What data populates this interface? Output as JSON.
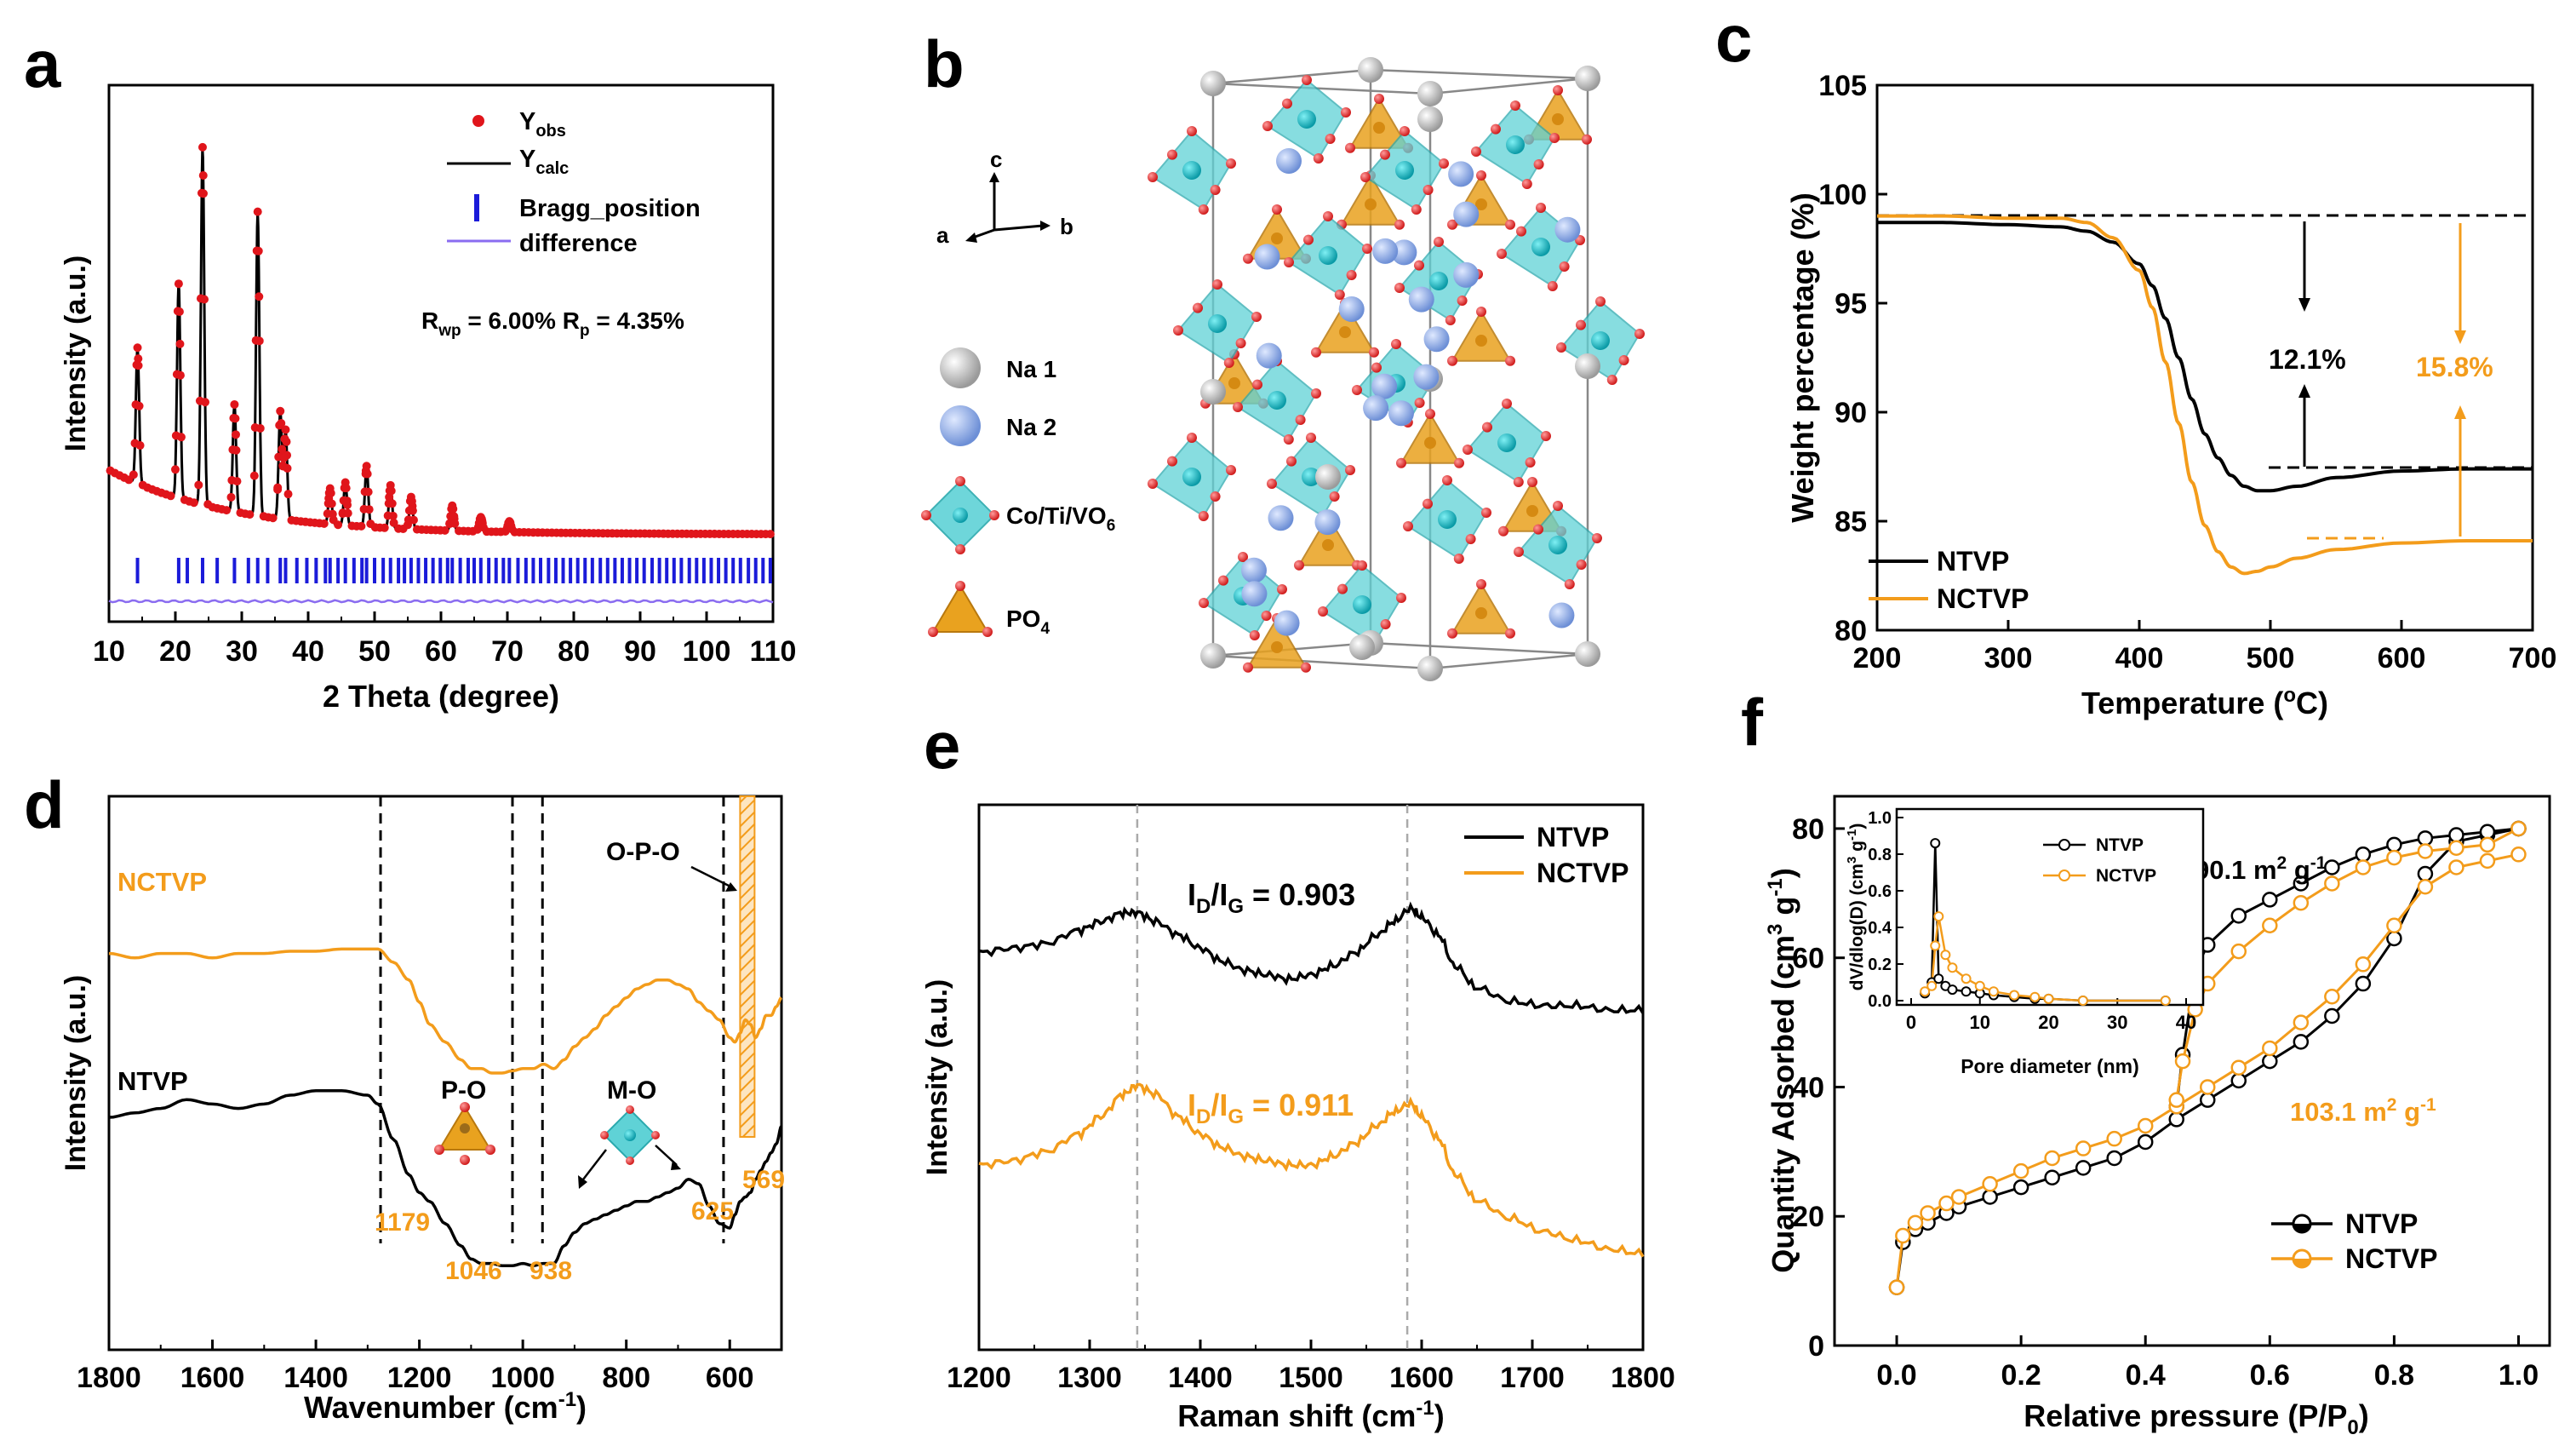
{
  "colors": {
    "black": "#000000",
    "orange": "#f39c1b",
    "red": "#e0151b",
    "blue": "#1b1bd9",
    "violet": "#8a6cf0",
    "teal": "#3fc1c9",
    "gold": "#e9a21f"
  },
  "panels": {
    "a": {
      "letter": "a",
      "ylabel": "Intensity (a.u.)",
      "xlabel": "2 Theta (degree)",
      "legend": [
        "Y",
        "obs",
        "Y",
        "calc",
        "Bragg_position",
        "difference"
      ],
      "annotation": {
        "rwp": "R",
        "rwp_sub": "wp",
        "rwp_val": " = 6.00% R",
        "rp_sub": "p",
        "rp_val": " = 4.35%"
      }
    },
    "b": {
      "letter": "b",
      "axes": {
        "a": "a",
        "b": "b",
        "c": "c"
      },
      "legend": {
        "na1": "Na 1",
        "na2": "Na 2",
        "oct": "Co/Ti/VO",
        "oct_sub": "6",
        "tet": "PO",
        "tet_sub": "4"
      }
    },
    "c": {
      "letter": "c",
      "ylabel": "Weight percentage (%)",
      "xlabel_pre": "Temperature (",
      "xlabel_sup": "o",
      "xlabel_post": "C)",
      "annot_black": "12.1%",
      "annot_orange": "15.8%",
      "legend": [
        "NTVP",
        "NCTVP"
      ]
    },
    "d": {
      "letter": "d",
      "ylabel": "Intensity (a.u.)",
      "xlabel_pre": "Wavenumber (cm",
      "xlabel_sup": "-1",
      "xlabel_post": ")",
      "series_labels": [
        "NCTVP",
        "NTVP"
      ],
      "opo": "O-P-O",
      "po": "P-O",
      "mo": "M-O",
      "peaks": [
        "1179",
        "1046",
        "938",
        "625",
        "569"
      ]
    },
    "e": {
      "letter": "e",
      "ylabel": "Intensity (a.u.)",
      "xlabel_pre": "Raman shift (cm",
      "xlabel_sup": "-1",
      "xlabel_post": ")",
      "legend": [
        "NTVP",
        "NCTVP"
      ],
      "ratio_black": {
        "pre": "I",
        "d": "D",
        "mid": "/I",
        "g": "G",
        "val": " = 0.903"
      },
      "ratio_orange": {
        "pre": "I",
        "d": "D",
        "mid": "/I",
        "g": "G",
        "val": " = 0.911"
      }
    },
    "f": {
      "letter": "f",
      "ylabel_pre": "Quantity Adsorbed (cm",
      "ylabel_sup": "3",
      "ylabel_mid": " g",
      "ylabel_sup2": "-1",
      "ylabel_post": ")",
      "xlabel_pre": "Relative pressure (P/P",
      "xlabel_sub": "0",
      "xlabel_post": ")",
      "area_black": {
        "val": "90.1 m",
        "sup": "2",
        "mid": " g",
        "sup2": "-1"
      },
      "area_orange": {
        "val": "103.1 m",
        "sup": "2",
        "mid": " g",
        "sup2": "-1"
      },
      "legend": [
        "NTVP",
        "NCTVP"
      ],
      "inset": {
        "xlabel": "Pore diameter (nm)",
        "ylabel_pre": "dV/dlog(D) (cm",
        "ylabel_sup": "3",
        "ylabel_mid": " g",
        "ylabel_sup2": "-1",
        "ylabel_post": ")",
        "legend": [
          "NTVP",
          "NCTVP"
        ]
      }
    }
  },
  "chart_data": [
    {
      "panel": "a",
      "type": "line",
      "xlim": [
        10,
        110
      ],
      "xticks": [
        10,
        20,
        30,
        40,
        50,
        60,
        70,
        80,
        90,
        100,
        110
      ],
      "peaks": [
        [
          14.3,
          0.38
        ],
        [
          20.5,
          0.6
        ],
        [
          24.1,
          1.0
        ],
        [
          28.9,
          0.3
        ],
        [
          32.4,
          0.85
        ],
        [
          35.8,
          0.3
        ],
        [
          36.6,
          0.25
        ],
        [
          43.3,
          0.1
        ],
        [
          45.6,
          0.12
        ],
        [
          48.8,
          0.17
        ],
        [
          52.4,
          0.12
        ],
        [
          55.5,
          0.09
        ],
        [
          61.7,
          0.07
        ],
        [
          66.0,
          0.04
        ],
        [
          70.3,
          0.03
        ]
      ],
      "bragg": [
        14.3,
        20.5,
        21.8,
        24.1,
        26.3,
        28.9,
        31.0,
        32.4,
        33.9,
        35.8,
        36.6,
        38.3,
        39.8,
        41.2,
        42.6,
        43.3,
        44.5,
        45.6,
        46.9,
        48.1,
        48.8,
        50.0,
        51.3,
        52.4,
        53.6,
        54.5,
        55.5,
        56.6,
        57.7,
        58.8,
        59.9,
        61.0,
        61.7,
        62.9,
        64.1,
        65.0,
        66.0,
        67.2,
        68.3,
        69.4,
        70.3,
        71.6,
        72.8,
        73.9,
        75.0,
        76.2,
        77.3,
        78.4,
        79.5,
        80.6,
        81.7,
        82.8,
        84.0,
        85.1,
        86.2,
        87.3,
        88.4,
        89.5,
        90.6,
        91.8,
        92.9,
        94.0,
        95.1,
        96.2,
        97.4,
        98.5,
        99.6,
        100.7,
        101.8,
        102.9,
        104.0,
        105.1,
        106.3,
        107.4,
        108.5,
        109.6
      ]
    },
    {
      "panel": "c",
      "type": "line",
      "xlabel": "Temperature (oC)",
      "ylabel": "Weight percentage (%)",
      "xlim": [
        200,
        700
      ],
      "ylim": [
        80,
        105
      ],
      "xticks": [
        200,
        300,
        400,
        500,
        600,
        700
      ],
      "yticks": [
        80,
        85,
        90,
        95,
        100,
        105
      ],
      "series": [
        {
          "name": "NTVP",
          "x": [
            200,
            250,
            300,
            340,
            360,
            380,
            400,
            410,
            420,
            430,
            440,
            450,
            460,
            470,
            480,
            490,
            500,
            520,
            550,
            600,
            650,
            700
          ],
          "y": [
            98.7,
            98.7,
            98.6,
            98.5,
            98.3,
            97.8,
            96.8,
            95.8,
            94.3,
            92.5,
            90.6,
            89.0,
            87.9,
            87.1,
            86.6,
            86.4,
            86.4,
            86.6,
            87.0,
            87.3,
            87.4,
            87.4
          ]
        },
        {
          "name": "NCTVP",
          "x": [
            200,
            250,
            300,
            340,
            360,
            380,
            400,
            410,
            420,
            430,
            440,
            450,
            460,
            470,
            480,
            490,
            500,
            520,
            550,
            600,
            650,
            700
          ],
          "y": [
            99.0,
            99.0,
            98.9,
            98.9,
            98.7,
            98.0,
            96.5,
            94.8,
            92.3,
            89.5,
            86.8,
            84.8,
            83.6,
            82.9,
            82.6,
            82.7,
            82.9,
            83.3,
            83.7,
            84.0,
            84.1,
            84.1
          ]
        }
      ]
    },
    {
      "panel": "d",
      "type": "line",
      "xlabel": "Wavenumber (cm-1)",
      "xlim": [
        1800,
        500
      ],
      "xticks": [
        1800,
        1600,
        1400,
        1200,
        1000,
        800,
        600
      ],
      "vlines": [
        1275,
        1020,
        962,
        612
      ],
      "hatch": [
        580,
        552
      ],
      "series": [
        {
          "name": "NCTVP",
          "x": [
            1800,
            1750,
            1700,
            1650,
            1600,
            1550,
            1500,
            1450,
            1400,
            1350,
            1300,
            1280,
            1250,
            1220,
            1200,
            1180,
            1150,
            1120,
            1100,
            1080,
            1060,
            1040,
            1020,
            1000,
            980,
            960,
            940,
            920,
            900,
            880,
            860,
            840,
            820,
            800,
            780,
            760,
            740,
            720,
            700,
            680,
            660,
            640,
            620,
            600,
            590,
            580,
            570,
            560,
            550,
            540,
            530,
            520,
            510,
            500
          ],
          "y": [
            0.77,
            0.76,
            0.77,
            0.77,
            0.76,
            0.77,
            0.77,
            0.775,
            0.775,
            0.78,
            0.78,
            0.78,
            0.75,
            0.71,
            0.66,
            0.61,
            0.57,
            0.53,
            0.51,
            0.51,
            0.5,
            0.5,
            0.505,
            0.51,
            0.51,
            0.52,
            0.51,
            0.53,
            0.56,
            0.58,
            0.6,
            0.63,
            0.65,
            0.67,
            0.69,
            0.7,
            0.71,
            0.71,
            0.7,
            0.69,
            0.66,
            0.64,
            0.62,
            0.58,
            0.57,
            0.59,
            0.62,
            0.61,
            0.58,
            0.6,
            0.63,
            0.63,
            0.65,
            0.67
          ]
        },
        {
          "name": "NTVP",
          "x": [
            1800,
            1750,
            1700,
            1650,
            1600,
            1550,
            1500,
            1450,
            1400,
            1350,
            1300,
            1280,
            1250,
            1220,
            1200,
            1180,
            1150,
            1120,
            1100,
            1080,
            1060,
            1040,
            1020,
            1000,
            980,
            960,
            940,
            920,
            900,
            880,
            860,
            840,
            820,
            800,
            780,
            760,
            740,
            720,
            700,
            680,
            660,
            640,
            620,
            600,
            590,
            580,
            570,
            560,
            550,
            540,
            530,
            520,
            510,
            500
          ],
          "y": [
            0.4,
            0.41,
            0.42,
            0.44,
            0.43,
            0.42,
            0.43,
            0.45,
            0.46,
            0.46,
            0.45,
            0.43,
            0.35,
            0.27,
            0.23,
            0.21,
            0.16,
            0.11,
            0.08,
            0.07,
            0.07,
            0.065,
            0.065,
            0.07,
            0.065,
            0.07,
            0.07,
            0.11,
            0.14,
            0.16,
            0.17,
            0.18,
            0.19,
            0.2,
            0.21,
            0.21,
            0.22,
            0.23,
            0.24,
            0.26,
            0.25,
            0.2,
            0.16,
            0.15,
            0.18,
            0.21,
            0.22,
            0.23,
            0.26,
            0.28,
            0.3,
            0.32,
            0.34,
            0.38
          ]
        }
      ]
    },
    {
      "panel": "e",
      "type": "line",
      "xlabel": "Raman shift (cm-1)",
      "xlim": [
        1200,
        1800
      ],
      "xticks": [
        1200,
        1300,
        1400,
        1500,
        1600,
        1700,
        1800
      ],
      "vlines": [
        1343,
        1587
      ],
      "series": [
        {
          "name": "NTVP",
          "x": [
            1200,
            1230,
            1260,
            1290,
            1310,
            1330,
            1343,
            1360,
            1380,
            1400,
            1420,
            1440,
            1460,
            1480,
            1500,
            1520,
            1540,
            1560,
            1575,
            1590,
            1600,
            1615,
            1630,
            1650,
            1680,
            1710,
            1740,
            1770,
            1800
          ],
          "y": [
            0.82,
            0.83,
            0.84,
            0.87,
            0.89,
            0.91,
            0.91,
            0.89,
            0.86,
            0.83,
            0.8,
            0.78,
            0.77,
            0.76,
            0.77,
            0.79,
            0.82,
            0.86,
            0.89,
            0.92,
            0.9,
            0.86,
            0.79,
            0.74,
            0.71,
            0.7,
            0.7,
            0.69,
            0.69
          ]
        },
        {
          "name": "NCTVP",
          "x": [
            1200,
            1230,
            1260,
            1290,
            1310,
            1330,
            1343,
            1360,
            1380,
            1400,
            1420,
            1440,
            1460,
            1480,
            1500,
            1520,
            1540,
            1560,
            1575,
            1590,
            1600,
            1615,
            1630,
            1650,
            1680,
            1710,
            1740,
            1770,
            1800
          ],
          "y": [
            0.34,
            0.35,
            0.37,
            0.41,
            0.45,
            0.5,
            0.52,
            0.5,
            0.45,
            0.41,
            0.38,
            0.36,
            0.35,
            0.34,
            0.34,
            0.36,
            0.39,
            0.43,
            0.46,
            0.48,
            0.45,
            0.4,
            0.32,
            0.26,
            0.22,
            0.19,
            0.17,
            0.15,
            0.14
          ]
        }
      ]
    },
    {
      "panel": "f",
      "type": "line",
      "xlabel": "Relative pressure (P/P0)",
      "ylabel": "Quantity Adsorbed (cm3 g-1)",
      "xlim": [
        -0.1,
        1.05
      ],
      "ylim": [
        0,
        85
      ],
      "xticks": [
        0.0,
        0.2,
        0.4,
        0.6,
        0.8,
        1.0
      ],
      "yticks": [
        0,
        20,
        40,
        60,
        80
      ],
      "series": [
        {
          "name": "NTVP adsorption",
          "x": [
            0.0,
            0.01,
            0.03,
            0.05,
            0.08,
            0.1,
            0.15,
            0.2,
            0.25,
            0.3,
            0.35,
            0.4,
            0.45,
            0.5,
            0.55,
            0.6,
            0.65,
            0.7,
            0.75,
            0.8,
            0.85,
            0.9,
            0.95,
            1.0
          ],
          "y": [
            9,
            16,
            18,
            19,
            20.5,
            21.5,
            23,
            24.5,
            26,
            27.5,
            29,
            31.5,
            35,
            38,
            41,
            44,
            47,
            51,
            56,
            63,
            73,
            78,
            79,
            80
          ]
        },
        {
          "name": "NTVP desorption",
          "x": [
            1.0,
            0.95,
            0.9,
            0.85,
            0.8,
            0.75,
            0.7,
            0.65,
            0.6,
            0.55,
            0.5,
            0.48,
            0.46,
            0.45
          ],
          "y": [
            80,
            79.5,
            79,
            78.5,
            77.5,
            76,
            74,
            71.5,
            69,
            66.5,
            62,
            58,
            45,
            37
          ]
        },
        {
          "name": "NCTVP adsorption",
          "x": [
            0.0,
            0.01,
            0.03,
            0.05,
            0.08,
            0.1,
            0.15,
            0.2,
            0.25,
            0.3,
            0.35,
            0.4,
            0.45,
            0.5,
            0.55,
            0.6,
            0.65,
            0.7,
            0.75,
            0.8,
            0.85,
            0.9,
            0.95,
            1.0
          ],
          "y": [
            9,
            17,
            19,
            20.5,
            22,
            23,
            25,
            27,
            29,
            30.5,
            32,
            34,
            37,
            40,
            43,
            46,
            50,
            54,
            59,
            65,
            71,
            74,
            75,
            76
          ]
        },
        {
          "name": "NCTVP desorption",
          "x": [
            1.0,
            0.95,
            0.9,
            0.85,
            0.8,
            0.75,
            0.7,
            0.65,
            0.6,
            0.55,
            0.5,
            0.48,
            0.46,
            0.45
          ],
          "y": [
            80,
            77.5,
            77,
            76.5,
            75.5,
            74,
            71.5,
            68.5,
            65,
            61,
            56,
            52,
            44,
            38
          ]
        }
      ]
    },
    {
      "panel": "f-inset",
      "type": "line",
      "xlabel": "Pore diameter (nm)",
      "xlim": [
        0,
        40
      ],
      "ylim": [
        0,
        1.0
      ],
      "xticks": [
        0,
        10,
        20,
        30,
        40
      ],
      "yticks": [
        0.0,
        0.2,
        0.4,
        0.6,
        0.8,
        1.0
      ],
      "series": [
        {
          "name": "NTVP",
          "x": [
            2,
            3,
            3.5,
            4,
            5,
            6,
            8,
            10,
            12,
            15,
            18,
            20,
            25,
            37
          ],
          "y": [
            0.04,
            0.1,
            0.86,
            0.12,
            0.08,
            0.06,
            0.05,
            0.04,
            0.03,
            0.02,
            0.01,
            0.01,
            0.0,
            0.0
          ]
        },
        {
          "name": "NCTVP",
          "x": [
            2,
            3,
            3.5,
            4,
            5,
            6,
            8,
            10,
            12,
            15,
            18,
            20,
            25,
            37
          ],
          "y": [
            0.05,
            0.08,
            0.3,
            0.46,
            0.25,
            0.18,
            0.12,
            0.08,
            0.05,
            0.03,
            0.02,
            0.01,
            0.0,
            0.0
          ]
        }
      ]
    }
  ]
}
